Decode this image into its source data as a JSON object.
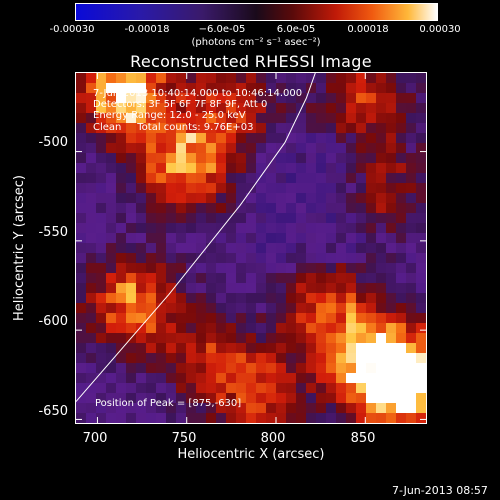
{
  "colorbar": {
    "ticks": [
      "-0.00030",
      "-0.00018",
      "−6.0e-05",
      "6.0e-05",
      "0.00018",
      "0.00030"
    ],
    "units": "(photons cm⁻² s⁻¹ asec⁻²)",
    "colors": [
      "#0a0ad8",
      "#3a1a6a",
      "#1a0a1a",
      "#c01a08",
      "#ffb83a",
      "#ffffff"
    ]
  },
  "header": {
    "title": "Reconstructed RHESSI Image"
  },
  "annotations": {
    "line1": "7-Jun-2013 10:40:14.000 to 10:46:14.000",
    "line2": "Detectors: 3F 5F 6F 7F 8F 9F, Att 0",
    "line3": "Energy Range: 12.0 - 25.0 keV",
    "line4": "Clean     Total counts: 9.76E+03",
    "peak": "Position of Peak = [875,-630]"
  },
  "footer": {
    "timestamp": "7-Jun-2013 08:57"
  },
  "chart_data": {
    "type": "heatmap",
    "title": "Reconstructed RHESSI Image",
    "xlabel": "Heliocentric X (arcsec)",
    "ylabel": "Heliocentric Y (arcsec)",
    "xlim": [
      688,
      884
    ],
    "ylim": [
      -652,
      -456
    ],
    "xticks": [
      700,
      750,
      800,
      850
    ],
    "yticks": [
      -500,
      -550,
      -600,
      -650
    ],
    "colorbar_range": [
      -0.0003,
      0.0003
    ],
    "peak": [
      875,
      -630
    ],
    "limb_curve": [
      [
        688,
        -640
      ],
      [
        740,
        -580
      ],
      [
        780,
        -530
      ],
      [
        805,
        -495
      ],
      [
        817,
        -470
      ],
      [
        822,
        -456
      ]
    ],
    "blobs": [
      {
        "x": 715,
        "y": -467,
        "intensity": 0.95
      },
      {
        "x": 748,
        "y": -508,
        "intensity": 0.75
      },
      {
        "x": 775,
        "y": -475,
        "intensity": 0.5
      },
      {
        "x": 720,
        "y": -585,
        "intensity": 0.7
      },
      {
        "x": 850,
        "y": -470,
        "intensity": 0.45
      },
      {
        "x": 860,
        "y": -520,
        "intensity": 0.35
      },
      {
        "x": 830,
        "y": -590,
        "intensity": 0.6
      },
      {
        "x": 855,
        "y": -620,
        "intensity": 0.85
      },
      {
        "x": 875,
        "y": -630,
        "intensity": 1.0
      },
      {
        "x": 790,
        "y": -635,
        "intensity": 0.55
      },
      {
        "x": 760,
        "y": -615,
        "intensity": 0.4
      }
    ]
  }
}
